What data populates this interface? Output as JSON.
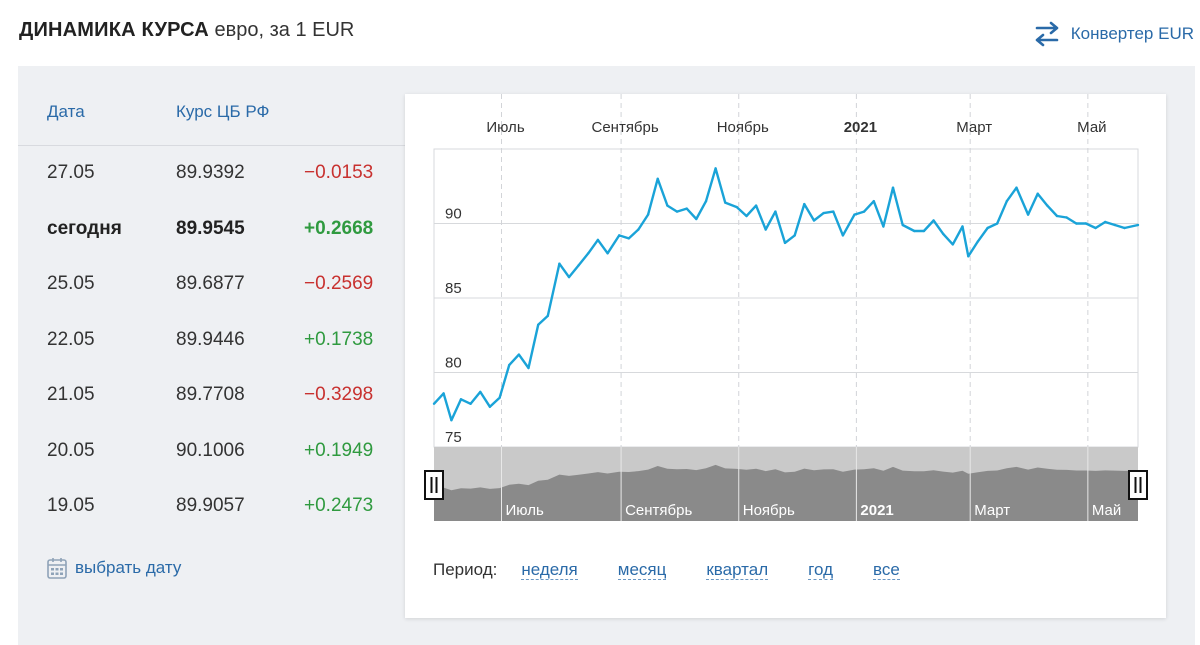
{
  "header": {
    "title": "ДИНАМИКА КУРСА",
    "subtitle": "евро, за 1 EUR",
    "converter_label": "Конвертер EUR"
  },
  "table": {
    "col_date": "Дата",
    "col_rate": "Курс ЦБ РФ",
    "rows": [
      {
        "date": "27.05",
        "rate": "89.9392",
        "delta": "−0.0153",
        "sign": "neg",
        "bold": false
      },
      {
        "date": "сегодня",
        "rate": "89.9545",
        "delta": "+0.2668",
        "sign": "pos",
        "bold": true
      },
      {
        "date": "25.05",
        "rate": "89.6877",
        "delta": "−0.2569",
        "sign": "neg",
        "bold": false
      },
      {
        "date": "22.05",
        "rate": "89.9446",
        "delta": "+0.1738",
        "sign": "pos",
        "bold": false
      },
      {
        "date": "21.05",
        "rate": "89.7708",
        "delta": "−0.3298",
        "sign": "neg",
        "bold": false
      },
      {
        "date": "20.05",
        "rate": "90.1006",
        "delta": "+0.1949",
        "sign": "pos",
        "bold": false
      },
      {
        "date": "19.05",
        "rate": "89.9057",
        "delta": "+0.2473",
        "sign": "pos",
        "bold": false
      }
    ],
    "pick_date_label": "выбрать дату"
  },
  "period": {
    "label": "Период:",
    "options": [
      "неделя",
      "месяц",
      "квартал",
      "год",
      "все"
    ]
  },
  "colors": {
    "line": "#1aa3d8",
    "link": "#2a6aa8",
    "negative": "#c8312f",
    "positive": "#2f9a3f"
  },
  "chart_data": {
    "type": "line",
    "x_ticks": [
      {
        "label": "Июль",
        "date": "2020-07-01",
        "bold": false
      },
      {
        "label": "Сентябрь",
        "date": "2020-09-01",
        "bold": false
      },
      {
        "label": "Ноябрь",
        "date": "2020-11-01",
        "bold": false
      },
      {
        "label": "2021",
        "date": "2021-01-01",
        "bold": true
      },
      {
        "label": "Март",
        "date": "2021-03-01",
        "bold": false
      },
      {
        "label": "Май",
        "date": "2021-05-01",
        "bold": false
      }
    ],
    "x_range": [
      "2020-05-27",
      "2021-05-27"
    ],
    "y_ticks": [
      75,
      80,
      85,
      90
    ],
    "ylim": [
      75,
      95
    ],
    "grid": true,
    "series": [
      {
        "x": [
          "2020-05-27",
          "2020-06-01",
          "2020-06-05",
          "2020-06-10",
          "2020-06-15",
          "2020-06-20",
          "2020-06-25",
          "2020-06-30",
          "2020-07-05",
          "2020-07-10",
          "2020-07-15",
          "2020-07-20",
          "2020-07-25",
          "2020-07-31",
          "2020-08-05",
          "2020-08-10",
          "2020-08-15",
          "2020-08-20",
          "2020-08-25",
          "2020-08-31",
          "2020-09-05",
          "2020-09-10",
          "2020-09-15",
          "2020-09-20",
          "2020-09-25",
          "2020-09-30",
          "2020-10-05",
          "2020-10-10",
          "2020-10-15",
          "2020-10-20",
          "2020-10-25",
          "2020-10-31",
          "2020-11-05",
          "2020-11-10",
          "2020-11-15",
          "2020-11-20",
          "2020-11-25",
          "2020-11-30",
          "2020-12-05",
          "2020-12-10",
          "2020-12-15",
          "2020-12-20",
          "2020-12-25",
          "2020-12-31",
          "2021-01-05",
          "2021-01-10",
          "2021-01-15",
          "2021-01-20",
          "2021-01-25",
          "2021-01-31",
          "2021-02-05",
          "2021-02-10",
          "2021-02-15",
          "2021-02-20",
          "2021-02-25",
          "2021-02-28",
          "2021-03-05",
          "2021-03-10",
          "2021-03-15",
          "2021-03-20",
          "2021-03-25",
          "2021-03-31",
          "2021-04-05",
          "2021-04-10",
          "2021-04-15",
          "2021-04-20",
          "2021-04-25",
          "2021-04-30",
          "2021-05-05",
          "2021-05-10",
          "2021-05-15",
          "2021-05-20",
          "2021-05-27"
        ],
        "y": [
          77.9,
          78.6,
          76.8,
          78.2,
          77.9,
          78.7,
          77.7,
          78.3,
          80.5,
          81.2,
          80.3,
          83.2,
          83.8,
          87.3,
          86.4,
          87.2,
          88.0,
          88.9,
          88.0,
          89.2,
          89.0,
          89.6,
          90.6,
          93.0,
          91.2,
          90.8,
          91.0,
          90.3,
          91.5,
          93.7,
          91.4,
          91.1,
          90.5,
          91.2,
          89.6,
          90.8,
          88.7,
          89.2,
          91.3,
          90.2,
          90.7,
          90.8,
          89.2,
          90.6,
          90.8,
          91.5,
          89.8,
          92.4,
          89.9,
          89.5,
          89.5,
          90.2,
          89.3,
          88.6,
          89.8,
          87.8,
          88.8,
          89.7,
          90.0,
          91.5,
          92.4,
          90.6,
          92.0,
          91.2,
          90.5,
          90.4,
          90.0,
          90.0,
          89.7,
          90.1,
          89.9,
          89.7,
          89.9
        ]
      }
    ]
  }
}
